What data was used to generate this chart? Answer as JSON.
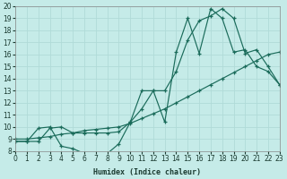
{
  "xlabel": "Humidex (Indice chaleur)",
  "x_min": 0,
  "x_max": 23,
  "y_min": 8,
  "y_max": 20,
  "background_color": "#c5ebe8",
  "grid_color": "#b0dbd8",
  "line_color": "#1a6b5a",
  "line1_x": [
    0,
    1,
    2,
    3,
    4,
    5,
    6,
    7,
    8,
    9,
    10,
    11,
    12,
    13,
    14,
    15,
    16,
    17,
    18,
    19,
    20,
    21,
    22,
    23
  ],
  "line1_y": [
    8.8,
    8.8,
    9.9,
    10.0,
    8.4,
    8.2,
    7.8,
    7.7,
    7.8,
    8.6,
    10.4,
    13.0,
    13.0,
    10.4,
    16.2,
    19.0,
    16.1,
    19.8,
    19.0,
    16.2,
    16.4,
    15.0,
    14.6,
    13.5
  ],
  "line2_x": [
    0,
    1,
    2,
    3,
    4,
    5,
    6,
    7,
    8,
    9,
    10,
    11,
    12,
    13,
    14,
    15,
    16,
    17,
    18,
    19,
    20,
    21,
    22,
    23
  ],
  "line2_y": [
    9.0,
    9.0,
    9.1,
    9.2,
    9.4,
    9.5,
    9.7,
    9.8,
    9.9,
    10.0,
    10.3,
    10.7,
    11.1,
    11.5,
    12.0,
    12.5,
    13.0,
    13.5,
    14.0,
    14.5,
    15.0,
    15.5,
    16.0,
    16.2
  ],
  "line3_x": [
    0,
    1,
    2,
    3,
    4,
    5,
    6,
    7,
    8,
    9,
    10,
    11,
    12,
    13,
    14,
    15,
    16,
    17,
    18,
    19,
    20,
    21,
    22,
    23
  ],
  "line3_y": [
    8.8,
    8.8,
    8.8,
    9.9,
    10.0,
    9.5,
    9.5,
    9.5,
    9.5,
    9.6,
    10.4,
    11.5,
    13.0,
    13.0,
    14.6,
    17.2,
    18.8,
    19.2,
    19.8,
    19.0,
    16.1,
    16.4,
    15.0,
    13.5
  ]
}
